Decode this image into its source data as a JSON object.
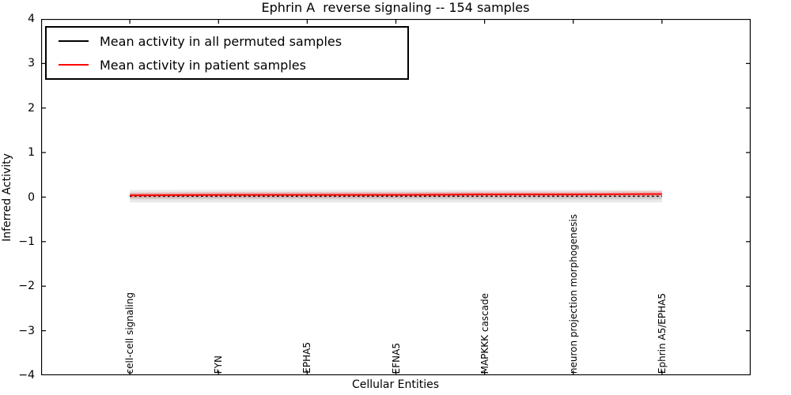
{
  "figure": {
    "title": "Ephrin A  reverse signaling -- 154 samples",
    "xlabel": "Cellular Entities",
    "ylabel": "Inferred Activity"
  },
  "legend": {
    "items": [
      {
        "label": "Mean activity in all permuted samples",
        "color": "#000000"
      },
      {
        "label": "Mean activity in patient samples",
        "color": "#ff0000"
      }
    ]
  },
  "axes": {
    "y_tick_labels": [
      "4",
      "3",
      "2",
      "1",
      "0",
      "−1",
      "−2",
      "−3",
      "−4"
    ],
    "y_tick_values": [
      4,
      3,
      2,
      1,
      0,
      -1,
      -2,
      -3,
      -4
    ],
    "x_tick_labels": [
      "cell-cell signaling",
      "FYN",
      "EPHA5",
      "EFNA5",
      "MAPKKK cascade",
      "neuron projection morphogenesis",
      "Ephrin A5/EPHA5"
    ]
  },
  "chart_data": {
    "type": "line",
    "title": "Ephrin A  reverse signaling -- 154 samples",
    "xlabel": "Cellular Entities",
    "ylabel": "Inferred Activity",
    "ylim": [
      -4,
      4
    ],
    "grid": false,
    "legend_position": "upper left",
    "categories": [
      "cell-cell signaling",
      "FYN",
      "EPHA5",
      "EFNA5",
      "MAPKKK cascade",
      "neuron projection morphogenesis",
      "Ephrin A5/EPHA5"
    ],
    "series": [
      {
        "name": "Mean activity in all permuted samples",
        "color": "#000000",
        "line_style": "dashed",
        "values": [
          0.02,
          0.02,
          0.02,
          0.02,
          0.02,
          0.02,
          0.02
        ],
        "bands": [
          {
            "half_width": 0.14,
            "color": "#999999",
            "opacity": 0.22
          },
          {
            "half_width": 0.07,
            "color": "#999999",
            "opacity": 0.3
          }
        ]
      },
      {
        "name": "Mean activity in patient samples",
        "color": "#ff0000",
        "line_style": "solid",
        "values": [
          0.04,
          0.05,
          0.05,
          0.05,
          0.06,
          0.06,
          0.07
        ],
        "bands": [
          {
            "half_width": 0.06,
            "color": "#ff5555",
            "opacity": 0.3
          }
        ]
      }
    ]
  }
}
